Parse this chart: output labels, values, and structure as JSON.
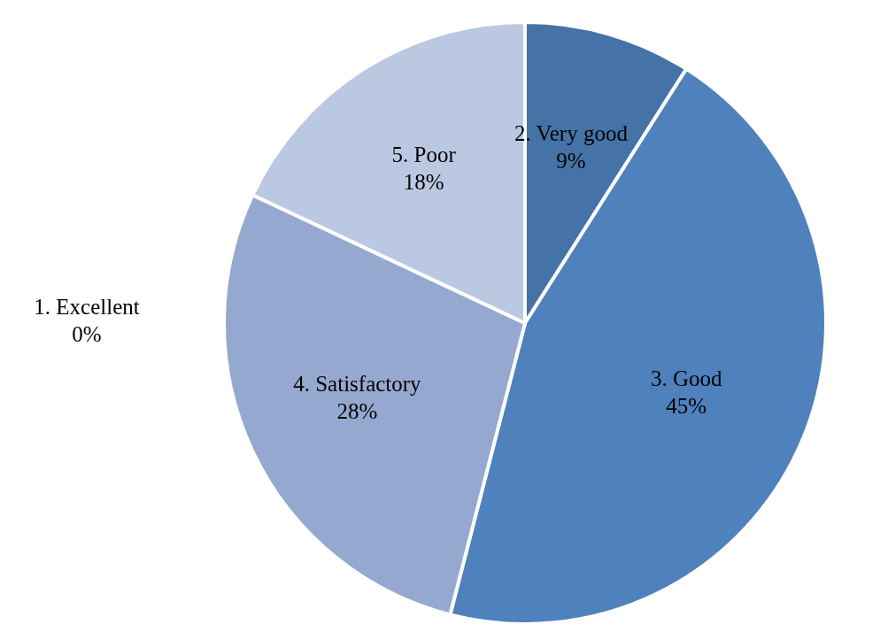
{
  "chart_data": {
    "type": "pie",
    "categories": [
      "1. Excellent",
      "2. Very good",
      "3. Good",
      "4. Satisfactory",
      "5. Poor"
    ],
    "values": [
      0,
      9,
      45,
      28,
      18
    ],
    "value_labels": [
      "0%",
      "9%",
      "45%",
      "28%",
      "18%"
    ],
    "colors": [
      "#3a5f8f",
      "#4573a7",
      "#4f81bd",
      "#95a9d0",
      "#bbc8e1"
    ],
    "legend": false
  }
}
